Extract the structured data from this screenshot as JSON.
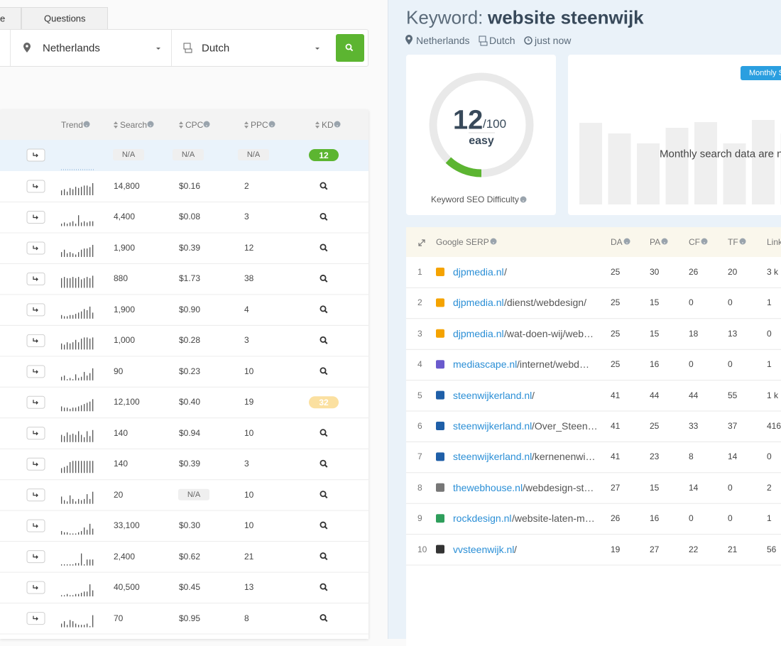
{
  "left": {
    "tabs": [
      "e",
      "Questions"
    ],
    "location": "Netherlands",
    "language": "Dutch",
    "columns": [
      "Trend",
      "Search",
      "CPC",
      "PPC",
      "KD"
    ],
    "rows": [
      {
        "search": "N/A",
        "cpc": "N/A",
        "ppc": "N/A",
        "kd": "12",
        "kd_color": "#5cb531",
        "trend": null
      },
      {
        "search": "14,800",
        "cpc": "$0.16",
        "ppc": "2",
        "kd": null,
        "trend": [
          4,
          5,
          3,
          6,
          5,
          7,
          6,
          7,
          8,
          8,
          7,
          10
        ]
      },
      {
        "search": "4,400",
        "cpc": "$0.08",
        "ppc": "3",
        "kd": null,
        "trend": [
          2,
          3,
          2,
          3,
          4,
          2,
          9,
          3,
          4,
          3,
          4,
          4
        ]
      },
      {
        "search": "1,900",
        "cpc": "$0.39",
        "ppc": "12",
        "kd": null,
        "trend": [
          4,
          6,
          3,
          4,
          3,
          2,
          4,
          6,
          7,
          7,
          8,
          10
        ]
      },
      {
        "search": "880",
        "cpc": "$1.73",
        "ppc": "38",
        "kd": null,
        "trend": [
          8,
          9,
          8,
          8,
          9,
          8,
          9,
          7,
          8,
          9,
          8,
          10
        ]
      },
      {
        "search": "1,900",
        "cpc": "$0.90",
        "ppc": "4",
        "kd": null,
        "trend": [
          3,
          2,
          2,
          3,
          3,
          4,
          5,
          6,
          8,
          7,
          10,
          5
        ]
      },
      {
        "search": "1,000",
        "cpc": "$0.28",
        "ppc": "3",
        "kd": null,
        "trend": [
          5,
          4,
          6,
          5,
          6,
          8,
          6,
          9,
          10,
          10,
          9,
          10
        ]
      },
      {
        "search": "90",
        "cpc": "$0.23",
        "ppc": "10",
        "kd": null,
        "trend": [
          3,
          4,
          1,
          2,
          1,
          5,
          2,
          3,
          7,
          4,
          6,
          10
        ]
      },
      {
        "search": "12,100",
        "cpc": "$0.40",
        "ppc": "19",
        "kd": "32",
        "kd_color": "#fbe0a0",
        "trend": [
          4,
          3,
          3,
          2,
          3,
          3,
          4,
          5,
          6,
          7,
          8,
          10
        ]
      },
      {
        "search": "140",
        "cpc": "$0.94",
        "ppc": "10",
        "kd": null,
        "trend": [
          6,
          5,
          8,
          6,
          7,
          6,
          9,
          6,
          4,
          9,
          5,
          10
        ]
      },
      {
        "search": "140",
        "cpc": "$0.39",
        "ppc": "3",
        "kd": null,
        "trend": [
          4,
          5,
          6,
          9,
          10,
          10,
          10,
          10,
          10,
          10,
          10,
          10
        ]
      },
      {
        "search": "20",
        "cpc": "N/A",
        "ppc": "10",
        "kd": null,
        "trend": [
          6,
          3,
          2,
          7,
          4,
          2,
          4,
          3,
          4,
          8,
          4,
          10
        ]
      },
      {
        "search": "33,100",
        "cpc": "$0.30",
        "ppc": "10",
        "kd": null,
        "trend": [
          3,
          2,
          2,
          1,
          1,
          1,
          2,
          3,
          6,
          4,
          9,
          5
        ]
      },
      {
        "search": "2,400",
        "cpc": "$0.62",
        "ppc": "21",
        "kd": null,
        "trend": [
          1,
          1,
          1,
          1,
          1,
          2,
          2,
          10,
          1,
          5,
          5,
          5
        ]
      },
      {
        "search": "40,500",
        "cpc": "$0.45",
        "ppc": "13",
        "kd": null,
        "trend": [
          1,
          1,
          2,
          1,
          1,
          2,
          2,
          3,
          4,
          4,
          10,
          5
        ]
      },
      {
        "search": "70",
        "cpc": "$0.95",
        "ppc": "8",
        "kd": null,
        "trend": [
          3,
          5,
          2,
          6,
          5,
          3,
          2,
          2,
          2,
          3,
          1,
          10
        ]
      }
    ]
  },
  "right": {
    "keyword_label": "Keyword:",
    "keyword": "website steenwijk",
    "meta": [
      "Netherlands",
      "Dutch",
      "just now"
    ],
    "difficulty": {
      "value": 12,
      "max": {
        "value": 100,
        "label": "/100"
      },
      "label": "easy",
      "caption": "Keyword SEO Difficulty",
      "color": "#5cb531"
    },
    "monthly": {
      "button": "Monthly S",
      "message": "Monthly search data are n"
    },
    "serp": {
      "columns": [
        "Google SERP",
        "DA",
        "PA",
        "CF",
        "TF",
        "Link"
      ],
      "rows": [
        {
          "rank": "1",
          "domain": "djpmedia.nl",
          "path": "/",
          "icon_color": "#f5a300",
          "da": "25",
          "pa": "30",
          "cf": "26",
          "tf": "20",
          "links": "3 k"
        },
        {
          "rank": "2",
          "domain": "djpmedia.nl",
          "path": "/dienst/webdesign/",
          "icon_color": "#f5a300",
          "da": "25",
          "pa": "15",
          "cf": "0",
          "tf": "0",
          "links": "1"
        },
        {
          "rank": "3",
          "domain": "djpmedia.nl",
          "path": "/wat-doen-wij/web…",
          "icon_color": "#f5a300",
          "da": "25",
          "pa": "15",
          "cf": "18",
          "tf": "13",
          "links": "0"
        },
        {
          "rank": "4",
          "domain": "mediascape.nl",
          "path": "/internet/webd…",
          "icon_color": "#6a5acd",
          "da": "25",
          "pa": "16",
          "cf": "0",
          "tf": "0",
          "links": "1"
        },
        {
          "rank": "5",
          "domain": "steenwijkerland.nl",
          "path": "/",
          "icon_color": "#1f5fa8",
          "da": "41",
          "pa": "44",
          "cf": "44",
          "tf": "55",
          "links": "1 k"
        },
        {
          "rank": "6",
          "domain": "steenwijkerland.nl",
          "path": "/Over_Steen…",
          "icon_color": "#1f5fa8",
          "da": "41",
          "pa": "25",
          "cf": "33",
          "tf": "37",
          "links": "416"
        },
        {
          "rank": "7",
          "domain": "steenwijkerland.nl",
          "path": "/kernenenwi…",
          "icon_color": "#1f5fa8",
          "da": "41",
          "pa": "23",
          "cf": "8",
          "tf": "14",
          "links": "0"
        },
        {
          "rank": "8",
          "domain": "thewebhouse.nl",
          "path": "/webdesign-st…",
          "icon_color": "#777777",
          "da": "27",
          "pa": "15",
          "cf": "14",
          "tf": "0",
          "links": "2"
        },
        {
          "rank": "9",
          "domain": "rockdesign.nl",
          "path": "/website-laten-m…",
          "icon_color": "#2e9e5b",
          "da": "26",
          "pa": "16",
          "cf": "0",
          "tf": "0",
          "links": "1"
        },
        {
          "rank": "10",
          "domain": "vvsteenwijk.nl",
          "path": "/",
          "icon_color": "#333333",
          "da": "19",
          "pa": "27",
          "cf": "22",
          "tf": "21",
          "links": "56"
        }
      ]
    }
  }
}
